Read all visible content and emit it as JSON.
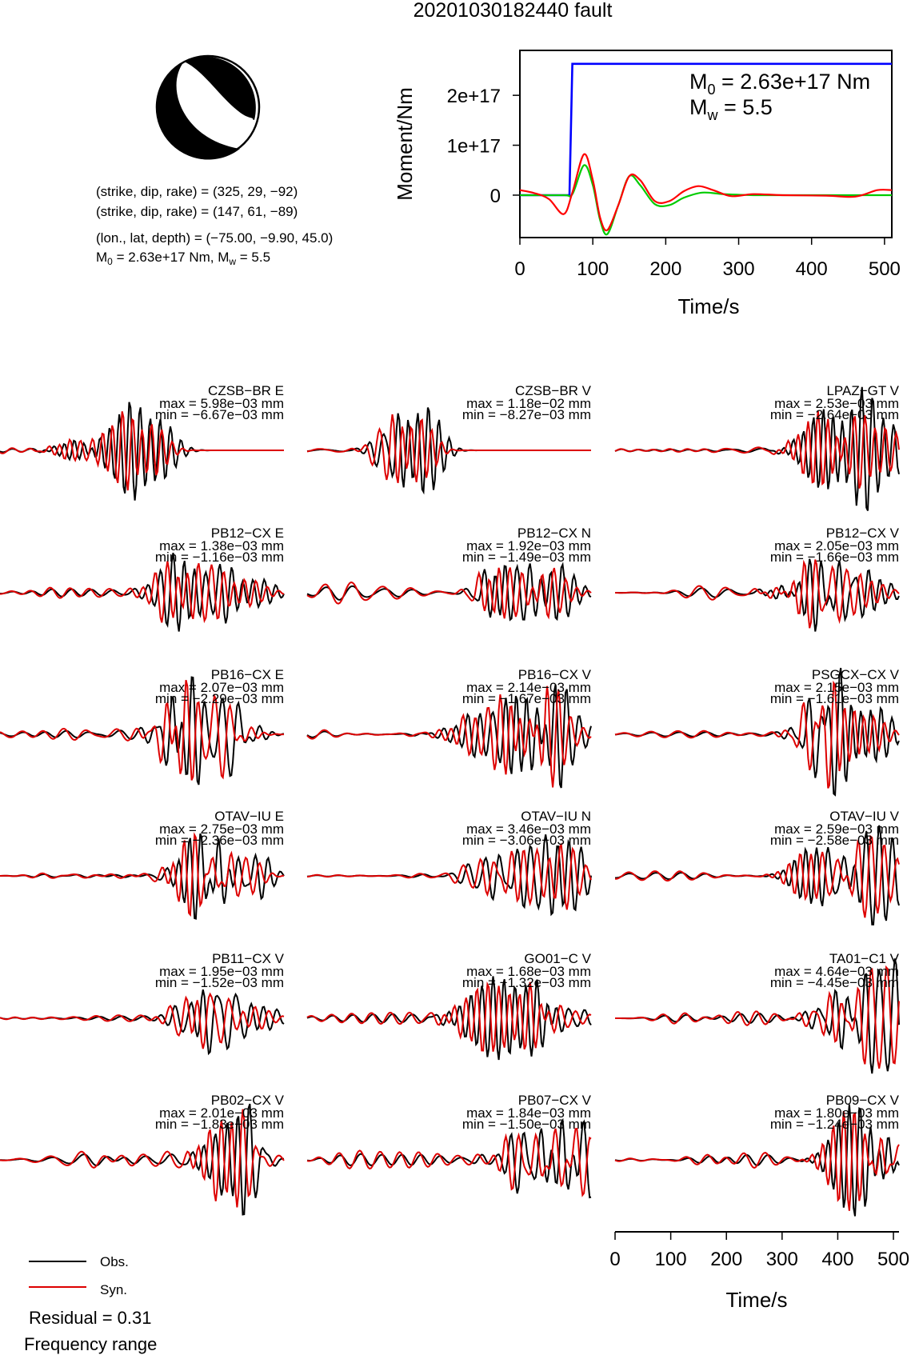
{
  "title": "20201030182440 fault",
  "mechanism": {
    "plane1": "(strike, dip, rake) = (325, 29, −92)",
    "plane2": "(strike, dip, rake) = (147, 61, −89)",
    "location": "(lon., lat, depth) = (−75.00, −9.90, 45.0)",
    "moment_text": "M0 = 2.63e+17 Nm, Mw = 5.5",
    "moment_prefix": "M",
    "moment_sub0": "0",
    "moment_mid": " = 2.63e+17 Nm, M",
    "moment_subw": "w",
    "moment_end": " = 5.5"
  },
  "moment_plot": {
    "ylabel": "Moment/Nm",
    "xlabel": "Time/s",
    "m0_text": "M0 = 2.63e+17 Nm",
    "mw_text": "Mw = 5.5",
    "m0_value": " = 2.63e+17 Nm",
    "mw_value": " = 5.5"
  },
  "chart_data": [
    {
      "type": "line",
      "title": "",
      "xlabel": "Time/s",
      "ylabel": "Moment/Nm",
      "xlim": [
        0,
        510
      ],
      "ylim": [
        -8.5e+16,
        2.9e+17
      ],
      "xticks": [
        0,
        100,
        200,
        300,
        400,
        500
      ],
      "yticks": [
        0,
        1e+17,
        2e+17
      ],
      "yticklabels": [
        "0",
        "1e+17",
        "2e+17"
      ],
      "series": [
        {
          "color": "#0000ff",
          "x": [
            0,
            68,
            72,
            510
          ],
          "y": [
            0,
            0,
            2.63e+17,
            2.63e+17
          ]
        },
        {
          "color": "#00cc00",
          "x": [
            0,
            60,
            72,
            88,
            100,
            110,
            120,
            135,
            150,
            165,
            185,
            205,
            225,
            250,
            280,
            320,
            360,
            420,
            480,
            510
          ],
          "y": [
            0,
            0,
            2000000000000000.0,
            6e+16,
            2e+16,
            -5e+16,
            -7.8e+16,
            -2e+16,
            3.8e+16,
            2e+16,
            -1.8e+16,
            -2e+16,
            -5000000000000000.0,
            5000000000000000.0,
            2000000000000000.0,
            0,
            0,
            0,
            0,
            0
          ]
        },
        {
          "color": "#ff0000",
          "x": [
            0,
            20,
            40,
            60,
            72,
            88,
            100,
            110,
            120,
            135,
            150,
            165,
            185,
            205,
            225,
            245,
            265,
            290,
            320,
            360,
            420,
            460,
            490,
            510
          ],
          "y": [
            1e+16,
            4000000000000000.0,
            -8000000000000000.0,
            -3.8e+16,
            5000000000000000.0,
            8.2e+16,
            3e+16,
            -4.5e+16,
            -7e+16,
            -2e+16,
            3.8e+16,
            3e+16,
            -1.2e+16,
            -1.2e+16,
            8000000000000000.0,
            1.8e+16,
            1e+16,
            -2000000000000000.0,
            2000000000000000.0,
            0,
            -1000000000000000.0,
            -3000000000000000.0,
            1e+16,
            1e+16
          ]
        }
      ]
    },
    {
      "type": "line",
      "title": "",
      "xlabel": "Time/s",
      "xlim": [
        0,
        510
      ],
      "xticks": [
        0,
        100,
        200,
        300,
        400,
        500
      ],
      "legend": {
        "placement": "bottom-left",
        "entries": [
          {
            "label": "Obs.",
            "color": "#000000"
          },
          {
            "label": "Syn.",
            "color": "#dd0000"
          }
        ]
      },
      "stations": [
        {
          "label": "CZSB−BR E",
          "max": "max = 5.98e−03 mm",
          "min": "min = −6.67e−03 mm"
        },
        {
          "label": "CZSB−BR V",
          "max": "max = 1.18e−02 mm",
          "min": "min = −8.27e−03 mm"
        },
        {
          "label": "LPAZ−GT V",
          "max": "max = 2.53e−03 mm",
          "min": "min = −2.64e−03 mm"
        },
        {
          "label": "PB12−CX E",
          "max": "max = 1.38e−03 mm",
          "min": "min = −1.16e−03 mm"
        },
        {
          "label": "PB12−CX N",
          "max": "max = 1.92e−03 mm",
          "min": "min = −1.49e−03 mm"
        },
        {
          "label": "PB12−CX V",
          "max": "max = 2.05e−03 mm",
          "min": "min = −1.66e−03 mm"
        },
        {
          "label": "PB16−CX E",
          "max": "max = 2.07e−03 mm",
          "min": "min = −2.29e−03 mm"
        },
        {
          "label": "PB16−CX V",
          "max": "max = 2.14e−03 mm",
          "min": "min = −1.67e−03 mm"
        },
        {
          "label": "PSGCX−CX V",
          "max": "max = 2.15e−03 mm",
          "min": "min = −1.61e−03 mm"
        },
        {
          "label": "OTAV−IU E",
          "max": "max = 2.75e−03 mm",
          "min": "min = −2.36e−03 mm"
        },
        {
          "label": "OTAV−IU N",
          "max": "max = 3.46e−03 mm",
          "min": "min = −3.06e−03 mm"
        },
        {
          "label": "OTAV−IU V",
          "max": "max = 2.59e−03 mm",
          "min": "min = −2.58e−03 mm"
        },
        {
          "label": "PB11−CX V",
          "max": "max = 1.95e−03 mm",
          "min": "min = −1.52e−03 mm"
        },
        {
          "label": "GO01−C V",
          "max": "max = 1.68e−03 mm",
          "min": "min = −1.32e−03 mm"
        },
        {
          "label": "TA01−C1 V",
          "max": "max = 4.64e−03 mm",
          "min": "min = −4.45e−03 mm"
        },
        {
          "label": "PB02−CX V",
          "max": "max = 2.01e−03 mm",
          "min": "min = −1.83e−03 mm"
        },
        {
          "label": "PB07−CX V",
          "max": "max = 1.84e−03 mm",
          "min": "min = −1.50e−03 mm"
        },
        {
          "label": "PB09−CX V",
          "max": "max = 1.80e−03 mm",
          "min": "min = −1.24e−03 mm"
        }
      ]
    }
  ],
  "residual": "Residual = 0.31",
  "frequency_label": "Frequency range",
  "colors": {
    "obs": "#000000",
    "syn": "#dd0000",
    "stf": "#0000ff",
    "moment_green": "#00cc00"
  }
}
